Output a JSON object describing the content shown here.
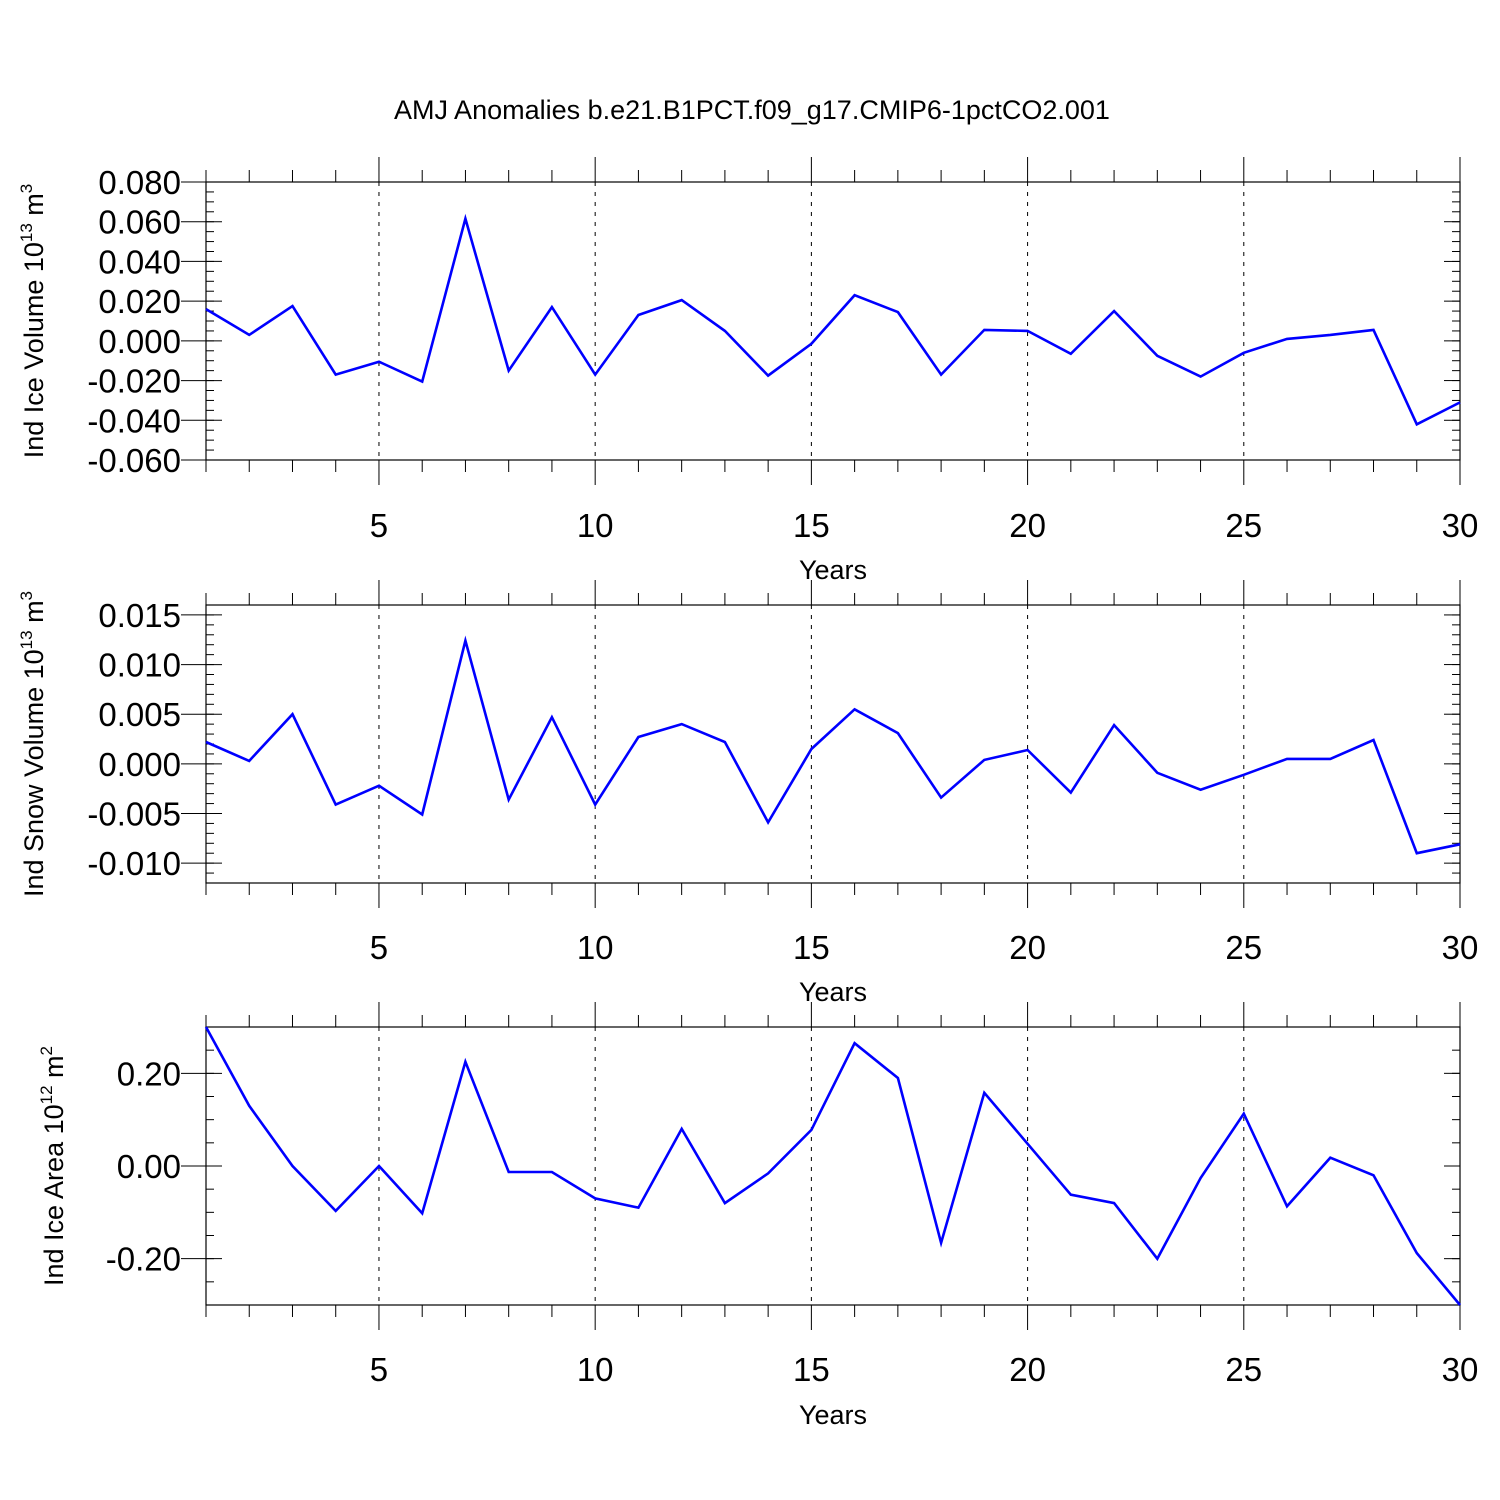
{
  "title": "AMJ Anomalies b.e21.B1PCT.f09_g17.CMIP6-1pctCO2.001",
  "colors": {
    "line": "#0000ff",
    "axis": "#000000",
    "grid": "#000000"
  },
  "chart_data": [
    {
      "type": "line",
      "ylabel": "Ind Ice Volume 10",
      "ylabel_exp": "13",
      "ylabel_unit": " m",
      "ylabel_unit_exp": "3",
      "xlabel": "Years",
      "xlim": [
        1,
        30
      ],
      "ylim": [
        -0.06,
        0.08
      ],
      "x_ticks": [
        5,
        10,
        15,
        20,
        25,
        30
      ],
      "x_tick_labels": [
        "5",
        "10",
        "15",
        "20",
        "25",
        "30"
      ],
      "y_ticks": [
        -0.06,
        -0.04,
        -0.02,
        0.0,
        0.02,
        0.04,
        0.06,
        0.08
      ],
      "y_tick_labels": [
        "-0.060",
        "-0.040",
        "-0.020",
        "0.000",
        "0.020",
        "0.040",
        "0.060",
        "0.080"
      ],
      "y_minor_step": 0.005,
      "grid_x": [
        5,
        10,
        15,
        20,
        25
      ],
      "x": [
        1,
        2,
        3,
        4,
        5,
        6,
        7,
        8,
        9,
        10,
        11,
        12,
        13,
        14,
        15,
        16,
        17,
        18,
        19,
        20,
        21,
        22,
        23,
        24,
        25,
        26,
        27,
        28,
        29,
        30
      ],
      "values": [
        0.016,
        0.003,
        0.0175,
        -0.017,
        -0.0105,
        -0.0205,
        0.0615,
        -0.015,
        0.017,
        -0.017,
        0.013,
        0.0205,
        0.005,
        -0.0175,
        -0.0015,
        0.023,
        0.0145,
        -0.017,
        0.0055,
        0.005,
        -0.0065,
        0.015,
        -0.0075,
        -0.018,
        -0.006,
        0.001,
        0.003,
        0.0055,
        -0.042,
        -0.031
      ]
    },
    {
      "type": "line",
      "ylabel": "Ind Snow Volume 10",
      "ylabel_exp": "13",
      "ylabel_unit": " m",
      "ylabel_unit_exp": "3",
      "xlabel": "Years",
      "xlim": [
        1,
        30
      ],
      "ylim": [
        -0.012,
        0.016
      ],
      "x_ticks": [
        5,
        10,
        15,
        20,
        25,
        30
      ],
      "x_tick_labels": [
        "5",
        "10",
        "15",
        "20",
        "25",
        "30"
      ],
      "y_ticks": [
        -0.01,
        -0.005,
        0.0,
        0.005,
        0.01,
        0.015
      ],
      "y_tick_labels": [
        "-0.010",
        "-0.005",
        "0.000",
        "0.005",
        "0.010",
        "0.015"
      ],
      "y_minor_step": 0.001,
      "grid_x": [
        5,
        10,
        15,
        20,
        25
      ],
      "x": [
        1,
        2,
        3,
        4,
        5,
        6,
        7,
        8,
        9,
        10,
        11,
        12,
        13,
        14,
        15,
        16,
        17,
        18,
        19,
        20,
        21,
        22,
        23,
        24,
        25,
        26,
        27,
        28,
        29,
        30
      ],
      "values": [
        0.0022,
        0.0003,
        0.005,
        -0.0041,
        -0.0022,
        -0.0051,
        0.0124,
        -0.0036,
        0.0047,
        -0.0041,
        0.0027,
        0.004,
        0.0022,
        -0.0059,
        0.0015,
        0.0055,
        0.0031,
        -0.0034,
        0.0004,
        0.0014,
        -0.0029,
        0.0039,
        -0.0009,
        -0.0026,
        -0.0011,
        0.0005,
        0.0005,
        0.0024,
        -0.009,
        -0.0081
      ]
    },
    {
      "type": "line",
      "ylabel": "Ind Ice Area 10",
      "ylabel_exp": "12",
      "ylabel_unit": " m",
      "ylabel_unit_exp": "2",
      "xlabel": "Years",
      "xlim": [
        1,
        30
      ],
      "ylim": [
        -0.3,
        0.3
      ],
      "x_ticks": [
        5,
        10,
        15,
        20,
        25,
        30
      ],
      "x_tick_labels": [
        "5",
        "10",
        "15",
        "20",
        "25",
        "30"
      ],
      "y_ticks": [
        -0.2,
        0.0,
        0.2
      ],
      "y_tick_labels": [
        "-0.20",
        "0.00",
        "0.20"
      ],
      "y_minor_step": 0.05,
      "grid_x": [
        5,
        10,
        15,
        20,
        25
      ],
      "x": [
        1,
        2,
        3,
        4,
        5,
        6,
        7,
        8,
        9,
        10,
        11,
        12,
        13,
        14,
        15,
        16,
        17,
        18,
        19,
        20,
        21,
        22,
        23,
        24,
        25,
        26,
        27,
        28,
        29,
        30
      ],
      "values": [
        0.3,
        0.13,
        0.0,
        -0.097,
        0.0,
        -0.102,
        0.225,
        -0.013,
        -0.013,
        -0.07,
        -0.09,
        0.08,
        -0.08,
        -0.016,
        0.078,
        0.265,
        0.19,
        -0.166,
        0.158,
        0.048,
        -0.062,
        -0.08,
        -0.2,
        -0.026,
        0.113,
        -0.087,
        0.018,
        -0.02,
        -0.188,
        -0.3
      ]
    }
  ]
}
